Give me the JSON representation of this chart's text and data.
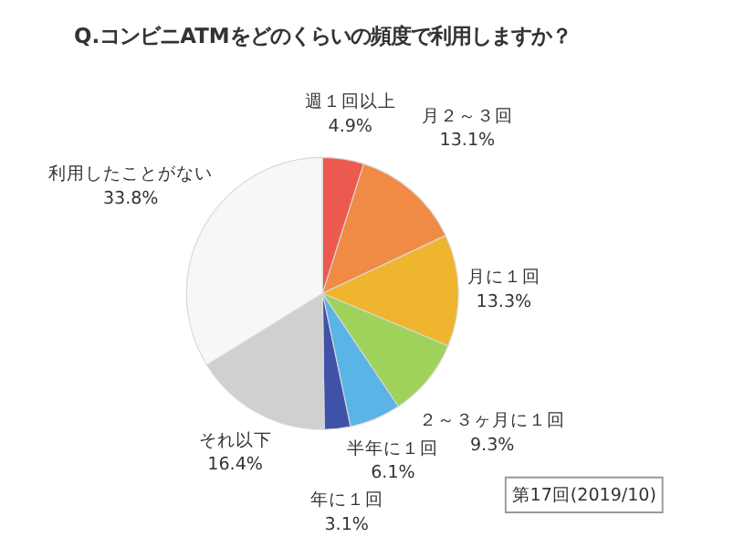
{
  "chart_data": {
    "type": "pie",
    "title": "Q.コンビニATMをどのくらいの頻度で利用しますか？",
    "categories": [
      "週１回以上",
      "月２～３回",
      "月に１回",
      "２～３ヶ月に１回",
      "半年に１回",
      "年に１回",
      "それ以下",
      "利用したことがない"
    ],
    "values": [
      4.9,
      13.1,
      13.3,
      9.3,
      6.1,
      3.1,
      16.4,
      33.8
    ],
    "value_labels": [
      "4.9%",
      "13.1%",
      "13.3%",
      "9.3%",
      "6.1%",
      "3.1%",
      "16.4%",
      "33.8%"
    ],
    "colors": [
      "#ec5a4f",
      "#f08a44",
      "#efb52e",
      "#9ed25a",
      "#5ab4e6",
      "#3f52a8",
      "#d0d0d0",
      "#f7f7f7"
    ],
    "legend": false,
    "annotations": [
      "第17回(2019/10)"
    ]
  }
}
